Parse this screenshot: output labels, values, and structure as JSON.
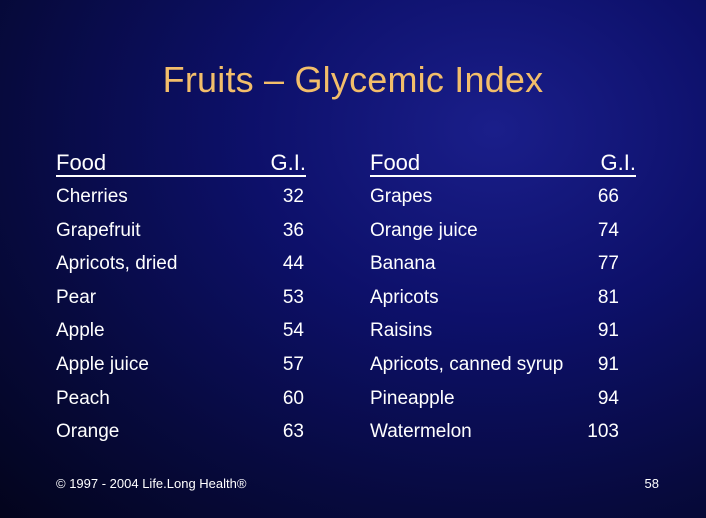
{
  "title": "Fruits – Glycemic Index",
  "table": {
    "left": {
      "header_food": "Food",
      "header_gi": "G.I.",
      "rows": [
        {
          "food": "Cherries",
          "gi": "32"
        },
        {
          "food": "Grapefruit",
          "gi": "36"
        },
        {
          "food": "Apricots, dried",
          "gi": "44"
        },
        {
          "food": "Pear",
          "gi": "53"
        },
        {
          "food": "Apple",
          "gi": "54"
        },
        {
          "food": "Apple juice",
          "gi": "57"
        },
        {
          "food": "Peach",
          "gi": "60"
        },
        {
          "food": "Orange",
          "gi": "63"
        }
      ]
    },
    "right": {
      "header_food": "Food",
      "header_gi": "G.I.",
      "rows": [
        {
          "food": "Grapes",
          "gi": "66"
        },
        {
          "food": "Orange juice",
          "gi": "74"
        },
        {
          "food": "Banana",
          "gi": "77"
        },
        {
          "food": "Apricots",
          "gi": "81"
        },
        {
          "food": "Raisins",
          "gi": "91"
        },
        {
          "food": "Apricots, canned syrup",
          "gi": "91"
        },
        {
          "food": "Pineapple",
          "gi": "94"
        },
        {
          "food": "Watermelon",
          "gi": "103"
        }
      ]
    }
  },
  "footer": {
    "copyright": "© 1997 - 2004 Life.Long Health®",
    "page_number": "58"
  },
  "colors": {
    "title": "#f3be6a",
    "text": "#ffffff",
    "background": "#0d106a"
  }
}
